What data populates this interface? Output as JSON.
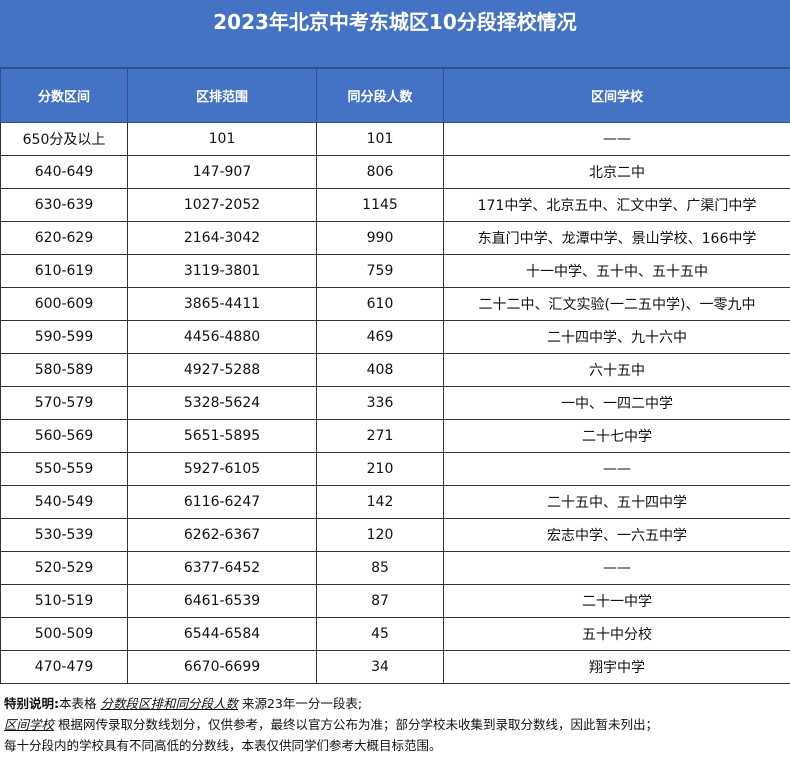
{
  "header": {
    "title": "2023年北京中考东城区10分段择校情况"
  },
  "table": {
    "columns": [
      "分数区间",
      "区排范围",
      "同分段人数",
      "区间学校"
    ],
    "rows": [
      [
        "650分及以上",
        "101",
        "101",
        "——"
      ],
      [
        "640-649",
        "147-907",
        "806",
        "北京二中"
      ],
      [
        "630-639",
        "1027-2052",
        "1145",
        "171中学、北京五中、汇文中学、广渠门中学"
      ],
      [
        "620-629",
        "2164-3042",
        "990",
        "东直门中学、龙潭中学、景山学校、166中学"
      ],
      [
        "610-619",
        "3119-3801",
        "759",
        "十一中学、五十中、五十五中"
      ],
      [
        "600-609",
        "3865-4411",
        "610",
        "二十二中、汇文实验(一二五中学)、一零九中"
      ],
      [
        "590-599",
        "4456-4880",
        "469",
        "二十四中学、九十六中"
      ],
      [
        "580-589",
        "4927-5288",
        "408",
        "六十五中"
      ],
      [
        "570-579",
        "5328-5624",
        "336",
        "一中、一四二中学"
      ],
      [
        "560-569",
        "5651-5895",
        "271",
        "二十七中学"
      ],
      [
        "550-559",
        "5927-6105",
        "210",
        "——"
      ],
      [
        "540-549",
        "6116-6247",
        "142",
        "二十五中、五十四中学"
      ],
      [
        "530-539",
        "6262-6367",
        "120",
        "宏志中学、一六五中学"
      ],
      [
        "520-529",
        "6377-6452",
        "85",
        "——"
      ],
      [
        "510-519",
        "6461-6539",
        "87",
        "二十一中学"
      ],
      [
        "500-509",
        "6544-6584",
        "45",
        "五十中分校"
      ],
      [
        "470-479",
        "6670-6699",
        "34",
        "翔宇中学"
      ]
    ]
  },
  "notes": {
    "label": "特别说明:",
    "line1": [
      "本表格 ",
      "分数段区排和同分段人数",
      " 来源23年一分一段表;"
    ],
    "line2": [
      "区间学校",
      " 根据网传录取分数线划分，仅供参考，最终以官方公布为准；部分学校未收集到录取分数线，因此暂未列出；"
    ],
    "line3": "每十分段内的学校具有不同高低的分数线，本表仅供同学们参考大概目标范围。"
  }
}
